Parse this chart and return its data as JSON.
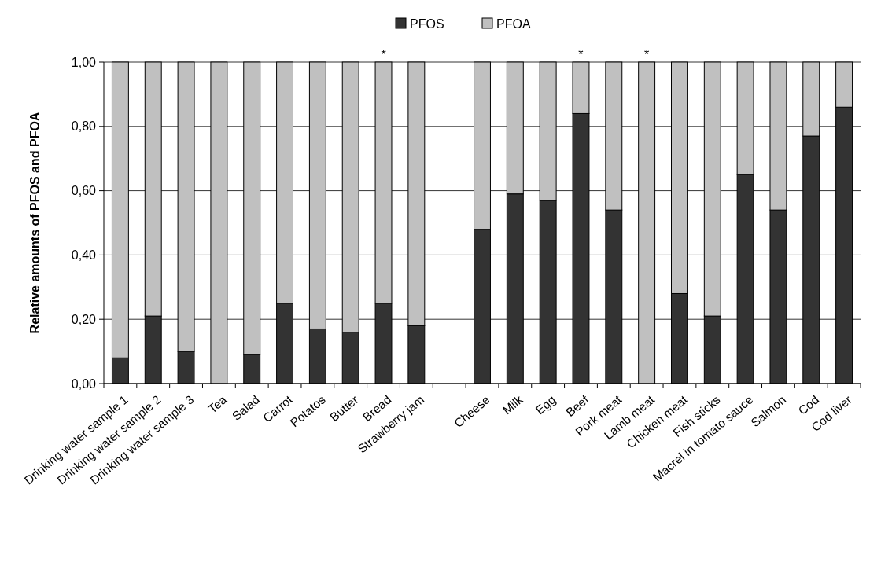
{
  "chart_data": {
    "type": "bar",
    "stacked": true,
    "ylabel": "Relative amounts of PFOS and PFOA",
    "categories": [
      "Drinking water sample 1",
      "Drinking water sample 2",
      "Drinking water sample 3",
      "Tea",
      "Salad",
      "Carrot",
      "Potatos",
      "Butter",
      "Bread",
      "Strawberry jam",
      null,
      "Cheese",
      "Milk",
      "Egg",
      "Beef",
      "Pork meat",
      "Lamb meat",
      "Chicken meat",
      "Fish sticks",
      "Macrel in tomato sauce",
      "Salmon",
      "Cod",
      "Cod liver"
    ],
    "series": [
      {
        "name": "PFOS",
        "color": "#333333",
        "values": [
          0.08,
          0.21,
          0.1,
          0,
          0.09,
          0.25,
          0.17,
          0.16,
          0.25,
          0.18,
          null,
          0.48,
          0.59,
          0.57,
          0.84,
          0.54,
          0,
          0.28,
          0.21,
          0.65,
          0.54,
          0.77,
          0.86
        ]
      },
      {
        "name": "PFOA",
        "color": "#c0c0c0",
        "values": [
          0.92,
          0.79,
          0.9,
          1,
          0.91,
          0.75,
          0.83,
          0.84,
          0.75,
          0.82,
          null,
          0.52,
          0.41,
          0.43,
          0.16,
          0.46,
          1,
          0.72,
          0.79,
          0.35,
          0.46,
          0.23,
          0.14
        ]
      }
    ],
    "ylim": [
      0,
      1
    ],
    "yticks": [
      {
        "value": 0,
        "label": "0,00"
      },
      {
        "value": 0.2,
        "label": "0,20"
      },
      {
        "value": 0.4,
        "label": "0,40"
      },
      {
        "value": 0.6,
        "label": "0,60"
      },
      {
        "value": 0.8,
        "label": "0,80"
      },
      {
        "value": 1,
        "label": "1,00"
      }
    ],
    "grid": "y",
    "legend": "top",
    "annotations": [
      {
        "text": "*",
        "x": "Bread",
        "y": 1
      },
      {
        "text": "*",
        "x": "Beef",
        "y": 1
      },
      {
        "text": "*",
        "x": "Lamb meat",
        "y": 1
      }
    ]
  }
}
